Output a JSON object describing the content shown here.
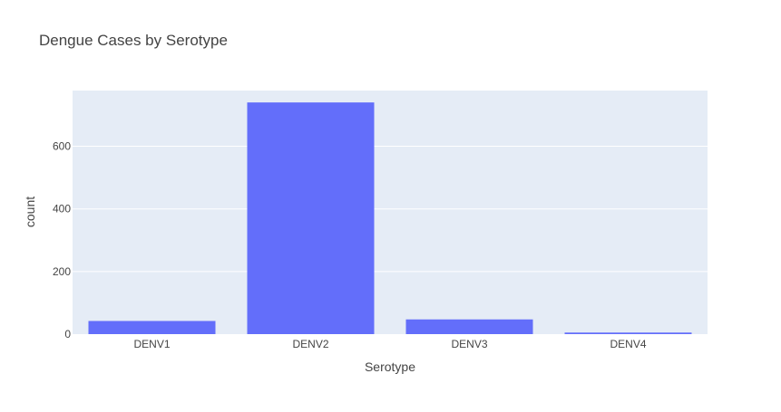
{
  "chart_data": {
    "type": "bar",
    "title": "Dengue Cases by Serotype",
    "xlabel": "Serotype",
    "ylabel": "count",
    "categories": [
      "DENV1",
      "DENV2",
      "DENV3",
      "DENV4"
    ],
    "values": [
      42,
      740,
      47,
      5
    ],
    "ylim": [
      0,
      778
    ],
    "yticks": [
      0,
      200,
      400,
      600
    ],
    "ytick_labels": [
      "0",
      "200",
      "400",
      "600"
    ],
    "grid": true,
    "legend": "none",
    "colors": {
      "bar": "#636efa",
      "plot_bg": "#e5ecf6",
      "grid": "#ffffff",
      "text": "#444444"
    }
  }
}
